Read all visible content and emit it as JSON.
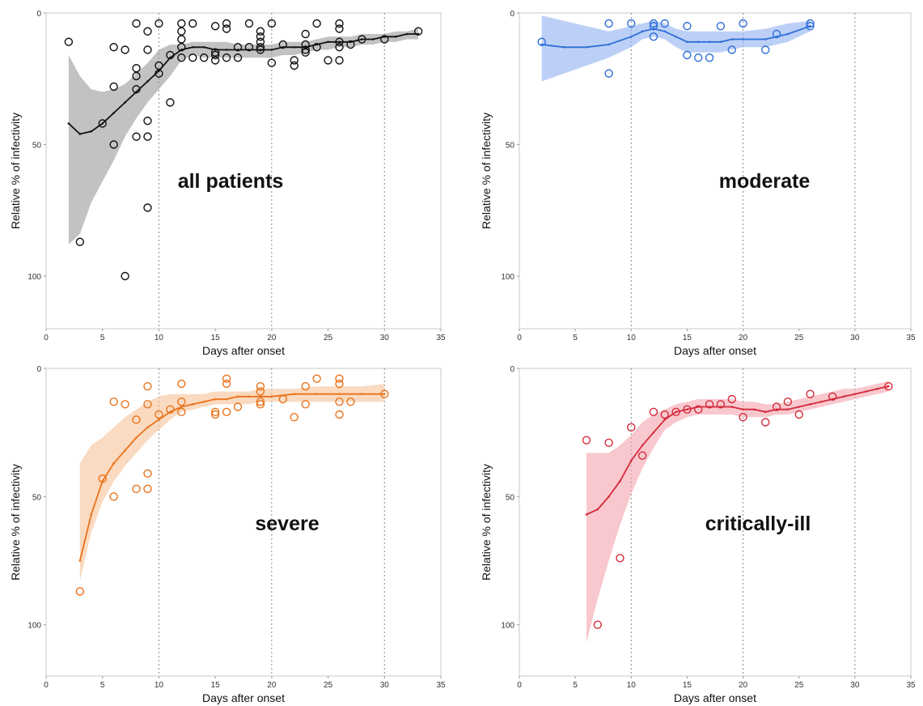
{
  "chart_data": [
    {
      "type": "scatter",
      "annotation": "all patients",
      "xlabel": "Days after onset",
      "ylabel": "Relative % of infectivity",
      "xlim": [
        0,
        35
      ],
      "ylim": [
        0,
        120
      ],
      "y_inverted": true,
      "xticks": [
        0,
        5,
        10,
        15,
        20,
        25,
        30,
        35
      ],
      "yticks": [
        0,
        50,
        100
      ],
      "vlines": [
        10,
        20,
        30
      ],
      "color": "#111111",
      "band_color": "#9a9a9a",
      "points": [
        [
          2,
          11
        ],
        [
          3,
          87
        ],
        [
          5,
          42
        ],
        [
          6,
          13
        ],
        [
          6,
          28
        ],
        [
          6,
          50
        ],
        [
          7,
          14
        ],
        [
          7,
          100
        ],
        [
          8,
          4
        ],
        [
          8,
          21
        ],
        [
          8,
          24
        ],
        [
          8,
          29
        ],
        [
          8,
          47
        ],
        [
          9,
          7
        ],
        [
          9,
          14
        ],
        [
          9,
          41
        ],
        [
          9,
          47
        ],
        [
          9,
          74
        ],
        [
          10,
          4
        ],
        [
          10,
          20
        ],
        [
          10,
          23
        ],
        [
          11,
          16
        ],
        [
          11,
          34
        ],
        [
          12,
          4
        ],
        [
          12,
          7
        ],
        [
          12,
          10
        ],
        [
          12,
          13
        ],
        [
          12,
          17
        ],
        [
          13,
          4
        ],
        [
          13,
          17
        ],
        [
          14,
          17
        ],
        [
          15,
          5
        ],
        [
          15,
          15
        ],
        [
          15,
          16
        ],
        [
          15,
          18
        ],
        [
          16,
          4
        ],
        [
          16,
          6
        ],
        [
          16,
          17
        ],
        [
          17,
          13
        ],
        [
          17,
          17
        ],
        [
          18,
          4
        ],
        [
          18,
          13
        ],
        [
          19,
          7
        ],
        [
          19,
          9
        ],
        [
          19,
          11
        ],
        [
          19,
          13
        ],
        [
          19,
          14
        ],
        [
          20,
          4
        ],
        [
          20,
          19
        ],
        [
          21,
          12
        ],
        [
          22,
          18
        ],
        [
          22,
          20
        ],
        [
          23,
          8
        ],
        [
          23,
          12
        ],
        [
          23,
          14
        ],
        [
          23,
          15
        ],
        [
          24,
          4
        ],
        [
          24,
          13
        ],
        [
          25,
          18
        ],
        [
          26,
          4
        ],
        [
          26,
          6
        ],
        [
          26,
          11
        ],
        [
          26,
          13
        ],
        [
          26,
          18
        ],
        [
          27,
          12
        ],
        [
          28,
          10
        ],
        [
          30,
          10
        ],
        [
          33,
          7
        ]
      ],
      "fit_x": [
        2,
        3,
        4,
        5,
        6,
        7,
        8,
        9,
        10,
        11,
        12,
        13,
        14,
        15,
        16,
        17,
        18,
        19,
        20,
        21,
        22,
        23,
        24,
        25,
        26,
        27,
        28,
        29,
        30,
        31,
        32,
        33
      ],
      "fit_y": [
        42,
        46,
        45,
        42,
        38,
        34,
        30,
        26,
        22,
        17,
        14,
        13,
        13,
        14,
        14,
        14,
        14,
        14,
        14,
        13,
        13,
        13,
        12,
        11,
        11,
        11,
        10,
        10,
        9,
        9,
        8,
        8
      ],
      "band_lower": [
        16,
        24,
        29,
        30,
        29,
        27,
        23,
        19,
        14,
        12,
        12,
        11,
        11,
        11,
        11,
        12,
        12,
        12,
        12,
        11,
        11,
        11,
        10,
        9,
        9,
        9,
        8,
        8,
        8,
        7,
        7,
        6
      ],
      "band_upper": [
        88,
        84,
        72,
        64,
        56,
        47,
        40,
        34,
        29,
        24,
        18,
        16,
        17,
        17,
        17,
        17,
        17,
        17,
        17,
        16,
        16,
        15,
        14,
        14,
        13,
        13,
        12,
        12,
        11,
        11,
        10,
        10
      ]
    },
    {
      "type": "scatter",
      "annotation": "moderate",
      "xlabel": "Days after onset",
      "ylabel": "Relative % of infectivity",
      "xlim": [
        0,
        35
      ],
      "ylim": [
        0,
        120
      ],
      "y_inverted": true,
      "xticks": [
        0,
        5,
        10,
        15,
        20,
        25,
        30,
        35
      ],
      "yticks": [
        0,
        50,
        100
      ],
      "vlines": [
        10,
        20,
        30
      ],
      "color": "#2f6fd6",
      "band_color": "#8fb0f2",
      "points": [
        [
          2,
          11
        ],
        [
          8,
          4
        ],
        [
          8,
          23
        ],
        [
          10,
          4
        ],
        [
          12,
          4
        ],
        [
          12,
          5
        ],
        [
          12,
          9
        ],
        [
          13,
          4
        ],
        [
          15,
          5
        ],
        [
          15,
          16
        ],
        [
          16,
          17
        ],
        [
          17,
          17
        ],
        [
          18,
          5
        ],
        [
          19,
          14
        ],
        [
          20,
          4
        ],
        [
          22,
          14
        ],
        [
          23,
          8
        ],
        [
          26,
          4
        ],
        [
          26,
          5
        ]
      ],
      "fit_x": [
        2,
        4,
        6,
        8,
        10,
        11,
        12,
        13,
        14,
        15,
        16,
        17,
        18,
        19,
        20,
        22,
        24,
        26
      ],
      "fit_y": [
        12,
        13,
        13,
        12,
        9,
        7,
        6,
        7,
        9,
        11,
        11,
        11,
        11,
        10,
        10,
        10,
        8,
        5
      ],
      "band_lower": [
        1,
        3,
        5,
        7,
        5,
        4,
        3,
        4,
        6,
        7,
        7,
        7,
        7,
        7,
        7,
        6,
        4,
        3
      ],
      "band_upper": [
        26,
        23,
        20,
        17,
        13,
        10,
        9,
        10,
        13,
        15,
        15,
        15,
        15,
        14,
        13,
        13,
        11,
        7
      ]
    },
    {
      "type": "scatter",
      "annotation": "severe",
      "xlabel": "Days after onset",
      "ylabel": "Relative % of infectivity",
      "xlim": [
        0,
        35
      ],
      "ylim": [
        0,
        120
      ],
      "y_inverted": true,
      "xticks": [
        0,
        5,
        10,
        15,
        20,
        25,
        30,
        35
      ],
      "yticks": [
        0,
        50,
        100
      ],
      "vlines": [
        10,
        20,
        30
      ],
      "color": "#e8731c",
      "band_color": "#f7c196",
      "points": [
        [
          3,
          87
        ],
        [
          5,
          43
        ],
        [
          6,
          13
        ],
        [
          6,
          50
        ],
        [
          7,
          14
        ],
        [
          8,
          20
        ],
        [
          8,
          47
        ],
        [
          9,
          7
        ],
        [
          9,
          14
        ],
        [
          9,
          41
        ],
        [
          9,
          47
        ],
        [
          10,
          18
        ],
        [
          11,
          16
        ],
        [
          12,
          6
        ],
        [
          12,
          13
        ],
        [
          12,
          17
        ],
        [
          15,
          17
        ],
        [
          15,
          18
        ],
        [
          16,
          4
        ],
        [
          16,
          6
        ],
        [
          16,
          17
        ],
        [
          17,
          15
        ],
        [
          19,
          7
        ],
        [
          19,
          9
        ],
        [
          19,
          13
        ],
        [
          19,
          14
        ],
        [
          21,
          12
        ],
        [
          22,
          19
        ],
        [
          23,
          7
        ],
        [
          23,
          14
        ],
        [
          24,
          4
        ],
        [
          26,
          4
        ],
        [
          26,
          6
        ],
        [
          26,
          13
        ],
        [
          26,
          18
        ],
        [
          27,
          13
        ],
        [
          30,
          10
        ]
      ],
      "fit_x": [
        3,
        4,
        5,
        6,
        7,
        8,
        9,
        10,
        11,
        12,
        13,
        14,
        15,
        16,
        17,
        18,
        19,
        20,
        22,
        24,
        26,
        28,
        30
      ],
      "fit_y": [
        75,
        57,
        44,
        37,
        32,
        27,
        23,
        20,
        17,
        15,
        14,
        13,
        12,
        12,
        11,
        11,
        11,
        11,
        10,
        10,
        10,
        10,
        10
      ],
      "band_lower": [
        83,
        64,
        52,
        44,
        38,
        33,
        28,
        24,
        20,
        17,
        16,
        15,
        14,
        14,
        14,
        14,
        13,
        13,
        13,
        13,
        13,
        13,
        13
      ],
      "band_upper": [
        37,
        30,
        27,
        23,
        19,
        16,
        13,
        11,
        10,
        10,
        10,
        10,
        9,
        9,
        9,
        9,
        8,
        8,
        8,
        7,
        7,
        7,
        6
      ]
    },
    {
      "type": "scatter",
      "annotation": "critically-ill",
      "xlabel": "Days after onset",
      "ylabel": "Relative % of infectivity",
      "xlim": [
        0,
        35
      ],
      "ylim": [
        0,
        120
      ],
      "y_inverted": true,
      "xticks": [
        0,
        5,
        10,
        15,
        20,
        25,
        30,
        35
      ],
      "yticks": [
        0,
        50,
        100
      ],
      "vlines": [
        10,
        20,
        30
      ],
      "color": "#d42a3a",
      "band_color": "#f4a3ad",
      "points": [
        [
          6,
          28
        ],
        [
          7,
          100
        ],
        [
          8,
          29
        ],
        [
          9,
          74
        ],
        [
          10,
          23
        ],
        [
          11,
          34
        ],
        [
          12,
          17
        ],
        [
          13,
          18
        ],
        [
          14,
          17
        ],
        [
          15,
          16
        ],
        [
          16,
          16
        ],
        [
          17,
          14
        ],
        [
          18,
          14
        ],
        [
          19,
          12
        ],
        [
          20,
          19
        ],
        [
          22,
          21
        ],
        [
          23,
          15
        ],
        [
          24,
          13
        ],
        [
          25,
          18
        ],
        [
          26,
          10
        ],
        [
          28,
          11
        ],
        [
          33,
          7
        ]
      ],
      "fit_x": [
        6,
        7,
        8,
        9,
        10,
        11,
        12,
        13,
        14,
        15,
        16,
        17,
        18,
        19,
        20,
        21,
        22,
        23,
        24,
        25,
        26,
        27,
        28,
        29,
        30,
        31,
        32,
        33
      ],
      "fit_y": [
        57,
        55,
        50,
        44,
        36,
        30,
        25,
        20,
        17,
        16,
        15,
        15,
        15,
        15,
        16,
        16,
        17,
        16,
        16,
        15,
        14,
        13,
        12,
        11,
        10,
        9,
        8,
        7
      ],
      "band_lower": [
        107,
        90,
        75,
        61,
        49,
        39,
        31,
        24,
        21,
        19,
        18,
        18,
        18,
        18,
        19,
        19,
        19,
        18,
        18,
        17,
        16,
        15,
        14,
        13,
        12,
        11,
        10,
        9
      ],
      "band_upper": [
        33,
        33,
        33,
        30,
        26,
        21,
        18,
        16,
        14,
        13,
        12,
        12,
        12,
        12,
        13,
        13,
        14,
        14,
        13,
        12,
        11,
        10,
        9,
        8,
        8,
        7,
        6,
        5
      ]
    }
  ]
}
